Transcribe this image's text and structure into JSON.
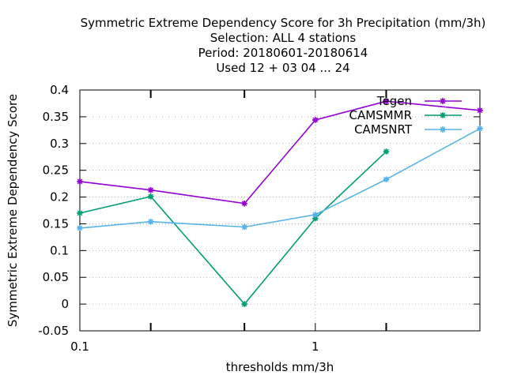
{
  "chart_data": {
    "type": "line",
    "title_lines": [
      "Symmetric Extreme Dependency Score  for 3h Precipitation (mm/3h)",
      "Selection: ALL      4 stations",
      "Period: 20180601-20180614",
      "Used  12 + 03 04 ... 24"
    ],
    "xlabel": "thresholds mm/3h",
    "ylabel": "Symmetric Extreme Dependency Score",
    "x_scale": "log",
    "xlim": [
      0.1,
      5
    ],
    "ylim": [
      -0.05,
      0.4
    ],
    "x_tick_labels": [
      {
        "value": 0.1,
        "label": "0.1"
      },
      {
        "value": 1,
        "label": "1"
      }
    ],
    "x_minor_ticks": [
      0.2,
      0.5,
      2
    ],
    "y_ticks": [
      -0.05,
      0,
      0.05,
      0.1,
      0.15,
      0.2,
      0.25,
      0.3,
      0.35,
      0.4
    ],
    "y_tick_labels": [
      "-0.05",
      "0",
      "0.05",
      "0.1",
      "0.15",
      "0.2",
      "0.25",
      "0.3",
      "0.35",
      "0.4"
    ],
    "grid": true,
    "legend_position": "top-right",
    "series": [
      {
        "name": "Tegen",
        "color": "#9400d3",
        "x": [
          0.1,
          0.2,
          0.5,
          1,
          2,
          5
        ],
        "y": [
          0.229,
          0.213,
          0.188,
          0.344,
          0.379,
          0.362
        ]
      },
      {
        "name": "CAMSMMR",
        "color": "#009e73",
        "x": [
          0.1,
          0.2,
          0.5,
          1,
          2
        ],
        "y": [
          0.17,
          0.201,
          0.0,
          0.16,
          0.285
        ]
      },
      {
        "name": "CAMSNRT",
        "color": "#56b4e9",
        "x": [
          0.1,
          0.2,
          0.5,
          1,
          2,
          5
        ],
        "y": [
          0.142,
          0.154,
          0.144,
          0.167,
          0.233,
          0.328
        ]
      }
    ]
  }
}
